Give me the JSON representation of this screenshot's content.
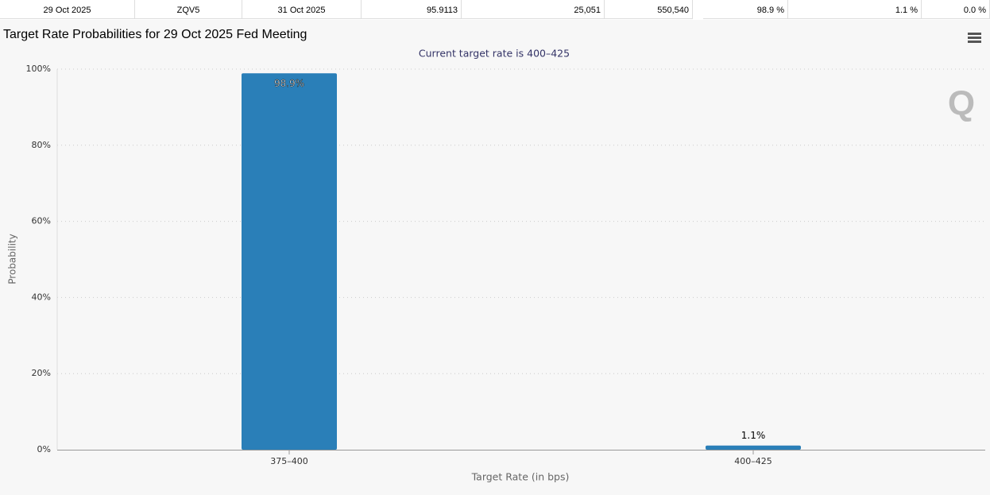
{
  "table_row": {
    "cells": [
      "29 Oct 2025",
      "ZQV5",
      "31 Oct 2025",
      "95.9113",
      "25,051",
      "550,540",
      "98.9 %",
      "1.1 %",
      "0.0 %"
    ]
  },
  "chart_data": {
    "type": "bar",
    "title": "Target Rate Probabilities for 29 Oct 2025 Fed Meeting",
    "subtitle": "Current target rate is 400–425",
    "x_label": "Target Rate (in bps)",
    "y_label": "Probability",
    "categories": [
      "375–400",
      "400–425"
    ],
    "values": [
      98.9,
      1.1
    ],
    "value_labels": [
      "98.9%",
      "1.1%"
    ],
    "color": "#2a7fb8",
    "ylim": [
      0,
      100
    ],
    "yticks": [
      {
        "value": 0,
        "label": "0%"
      },
      {
        "value": 20,
        "label": "20%"
      },
      {
        "value": 40,
        "label": "40%"
      },
      {
        "value": 60,
        "label": "60%"
      },
      {
        "value": 80,
        "label": "80%"
      },
      {
        "value": 100,
        "label": "100%"
      }
    ],
    "grid": true
  }
}
